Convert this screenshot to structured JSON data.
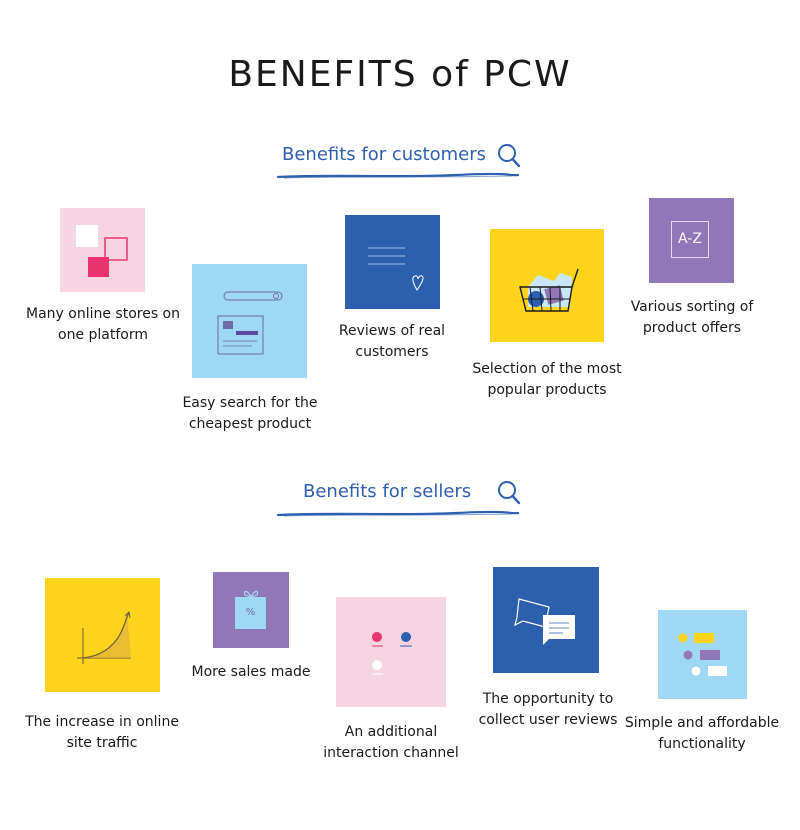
{
  "title": "BENEFITS of PCW",
  "sections": {
    "customers": {
      "heading": "Benefits for customers",
      "items": [
        {
          "label": "Many online stores on one platform"
        },
        {
          "label": "Easy search for the cheapest product"
        },
        {
          "label": "Reviews of real customers"
        },
        {
          "label": "Selection of the most popular products"
        },
        {
          "label": "Various sorting of product offers",
          "tile_text": "A-Z"
        }
      ]
    },
    "sellers": {
      "heading": "Benefits for sellers",
      "items": [
        {
          "label": "The increase in online site traffic"
        },
        {
          "label": "More sales made",
          "tile_text": "%"
        },
        {
          "label": "An additional interaction channel"
        },
        {
          "label": "The opportunity to collect user reviews"
        },
        {
          "label": "Simple and affordable functionality"
        }
      ]
    }
  },
  "colors": {
    "pink": "#f6d4e2",
    "light_blue": "#9fd8f5",
    "dark_blue": "#2c5fad",
    "yellow": "#fdd41b",
    "purple": "#9078b8",
    "magenta": "#e9356f",
    "accent_text": "#2f5fb0"
  }
}
